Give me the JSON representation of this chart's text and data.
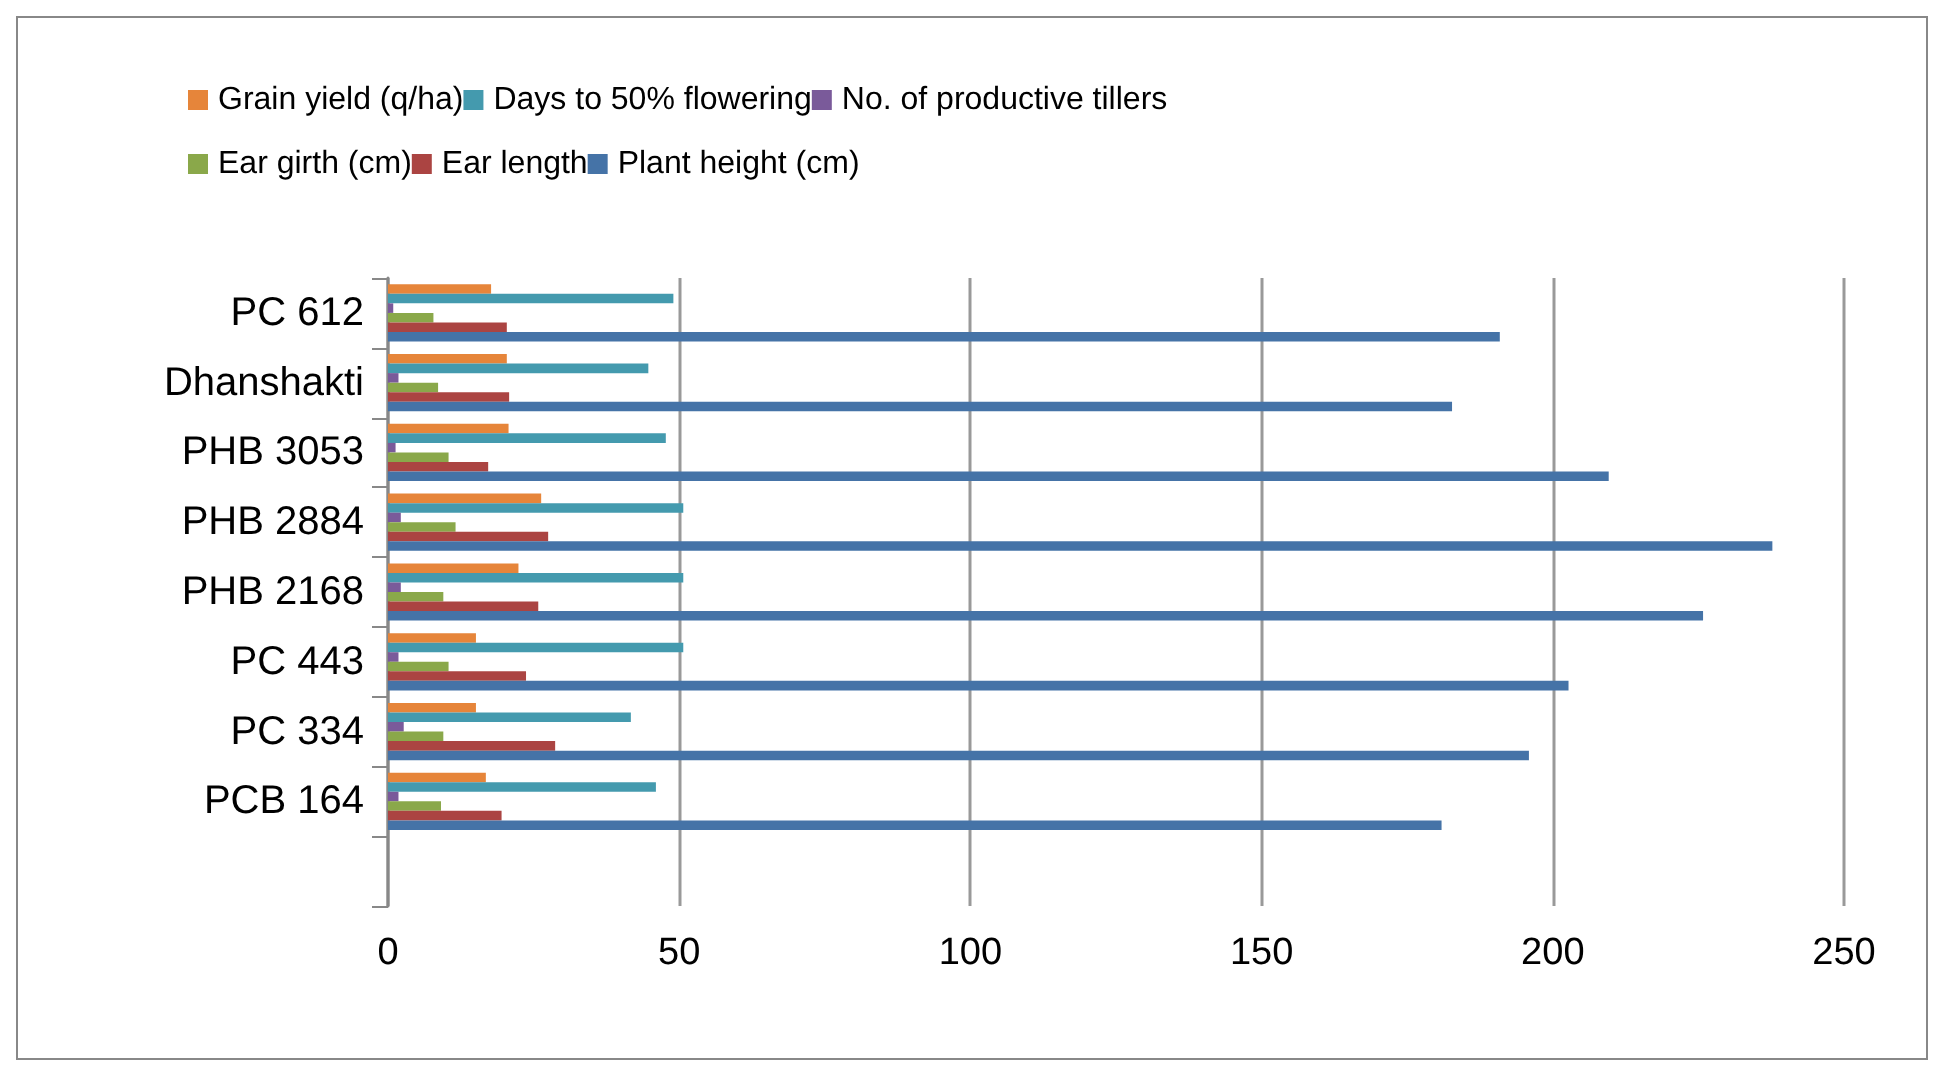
{
  "chart_data": {
    "type": "bar",
    "orientation": "horizontal",
    "categories": [
      "PC 612",
      "Dhanshakti",
      "PHB 3053",
      "PHB 2884",
      "PHB 2168",
      "PC 443",
      "PC 334",
      "PCB 164",
      null
    ],
    "series": [
      {
        "name": "Grain yield (q/ha)",
        "color": "#e6853a",
        "values": [
          17.7,
          20.4,
          20.7,
          26.3,
          22.4,
          15.1,
          15.1,
          16.8,
          null
        ]
      },
      {
        "name": "Days to 50% flowering",
        "color": "#449aae",
        "values": [
          49.0,
          44.7,
          47.7,
          50.7,
          50.7,
          50.7,
          41.7,
          46.0,
          null
        ]
      },
      {
        "name": "No. of productive tillers",
        "color": "#7a5a9a",
        "values": [
          0.9,
          1.8,
          1.3,
          2.2,
          2.2,
          1.8,
          2.7,
          1.8,
          null
        ]
      },
      {
        "name": "Ear girth (cm)",
        "color": "#8aa84a",
        "values": [
          7.8,
          8.6,
          10.4,
          11.6,
          9.5,
          10.4,
          9.5,
          9.1,
          null
        ]
      },
      {
        "name": "Ear length",
        "color": "#ab4442",
        "values": [
          20.4,
          20.8,
          17.2,
          27.5,
          25.8,
          23.7,
          28.7,
          19.5,
          null
        ]
      },
      {
        "name": "Plant height (cm)",
        "color": "#4573a7",
        "values": [
          190.9,
          182.7,
          209.6,
          237.7,
          225.8,
          202.7,
          195.9,
          180.9,
          null
        ]
      }
    ],
    "xlim": [
      0,
      250
    ],
    "xticks": [
      0,
      50,
      100,
      150,
      200,
      250
    ],
    "grid": "x",
    "legend": "top"
  }
}
